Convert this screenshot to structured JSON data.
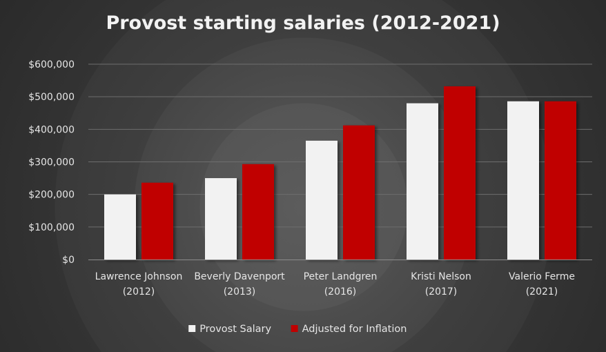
{
  "chart_data": {
    "type": "bar",
    "title": "Provost starting salaries (2012-2021)",
    "xlabel": "",
    "ylabel": "",
    "categories": [
      [
        "Lawrence Johnson",
        "(2012)"
      ],
      [
        "Beverly Davenport",
        "(2013)"
      ],
      [
        "Peter Landgren",
        "(2016)"
      ],
      [
        "Kristi Nelson",
        "(2017)"
      ],
      [
        "Valerio Ferme",
        "(2021)"
      ]
    ],
    "series": [
      {
        "name": "Provost Salary",
        "color": "#f2f2f2",
        "values": [
          200000,
          250000,
          365000,
          480000,
          486000
        ]
      },
      {
        "name": "Adjusted for Inflation",
        "color": "#c00000",
        "values": [
          236000,
          293000,
          412000,
          532000,
          486000
        ]
      }
    ],
    "ylim": [
      0,
      600000
    ],
    "yticks": [
      0,
      100000,
      200000,
      300000,
      400000,
      500000,
      600000
    ],
    "ytick_labels": [
      "$0",
      "$100,000",
      "$200,000",
      "$300,000",
      "$400,000",
      "$500,000",
      "$600,000"
    ],
    "grid": true,
    "legend_position": "bottom"
  }
}
